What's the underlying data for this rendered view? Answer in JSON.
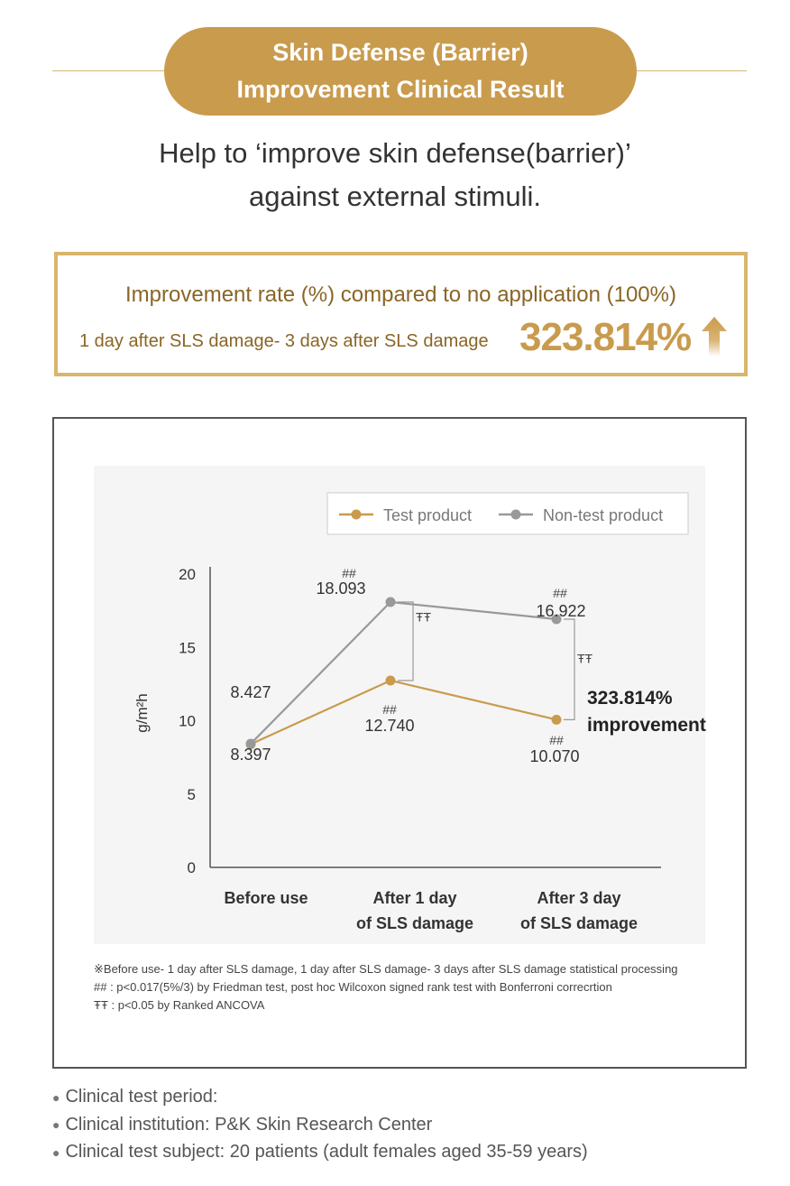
{
  "header": {
    "title_line1": "Skin Defense (Barrier)",
    "title_line2": "Improvement Clinical Result"
  },
  "subtitle": {
    "line1": "Help to ‘improve skin defense(barrier)’",
    "line2": "against external stimuli."
  },
  "improvement_box": {
    "label": "Improvement rate (%) compared to no application (100%)",
    "period": "1 day after SLS damage- 3 days after SLS damage",
    "value": "323.814%",
    "arrow_icon": "up-arrow-icon"
  },
  "chart_data": {
    "type": "line",
    "ylabel": "g/m²h",
    "ylim": [
      0,
      20
    ],
    "yticks": [
      0,
      5,
      10,
      15,
      20
    ],
    "categories": [
      [
        "Before use"
      ],
      [
        "After 1 day",
        "of SLS damage"
      ],
      [
        "After 3 day",
        "of SLS damage"
      ]
    ],
    "series": [
      {
        "name": "Test product",
        "color": "#c99b4d",
        "values": [
          8.397,
          12.74,
          10.07
        ],
        "labels": [
          "8.397",
          "12.740",
          "10.070"
        ],
        "markers": [
          "",
          "##",
          "##"
        ]
      },
      {
        "name": "Non-test product",
        "color": "#999999",
        "values": [
          8.427,
          18.093,
          16.922
        ],
        "labels": [
          "8.427",
          "18.093",
          "16.922"
        ],
        "markers": [
          "",
          "##",
          "##"
        ]
      }
    ],
    "significance_mark": "ŦŦ",
    "annotation": [
      "323.814%",
      "improvement"
    ],
    "legend_position": "top-right",
    "grid": false
  },
  "footnotes": [
    "※Before use- 1 day after SLS damage, 1 day after SLS damage- 3 days after SLS damage statistical processing",
    "## : p<0.017(5%/3) by Friedman test, post hoc Wilcoxon signed rank test with Bonferroni correcrtion",
    "ŦŦ : p<0.05 by Ranked ANCOVA"
  ],
  "clinical_info": [
    "Clinical test period:",
    "Clinical institution: P&K Skin Research Center",
    "Clinical test subject: 20 patients (adult females aged 35-59 years)"
  ]
}
